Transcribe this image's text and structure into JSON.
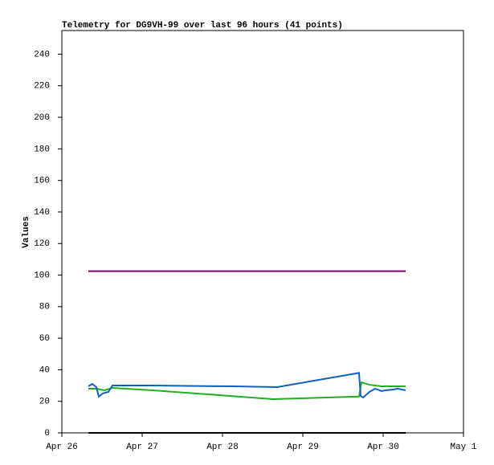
{
  "chart_data": {
    "type": "line",
    "title": "Telemetry for DG9VH-99 over last 96 hours (41 points)",
    "y_label": "Values",
    "xlim": [
      0,
      5
    ],
    "xticks": [
      {
        "value": 0,
        "label": "Apr 26"
      },
      {
        "value": 1,
        "label": "Apr 27"
      },
      {
        "value": 2,
        "label": "Apr 28"
      },
      {
        "value": 3,
        "label": "Apr 29"
      },
      {
        "value": 4,
        "label": "Apr 30"
      },
      {
        "value": 5,
        "label": "May 1"
      }
    ],
    "ylim": [
      0,
      255
    ],
    "yticks": [
      0,
      20,
      40,
      60,
      80,
      100,
      120,
      140,
      160,
      180,
      200,
      220,
      240
    ],
    "grid": false,
    "series": [
      {
        "color": "#800060",
        "x": [
          0.33,
          4.28
        ],
        "values": [
          102.5,
          102.5
        ]
      },
      {
        "color": "#000000",
        "x": [
          0.33,
          4.28
        ],
        "values": [
          0,
          0
        ]
      },
      {
        "color": "#20b020",
        "x": [
          0.33,
          0.43,
          0.53,
          0.63,
          1.13,
          2.63,
          3.7,
          3.73,
          3.83,
          3.98,
          4.28
        ],
        "values": [
          28,
          28,
          27,
          28.5,
          27,
          21.4,
          23,
          32,
          30.5,
          29.5,
          29.5
        ]
      },
      {
        "color": "#1060c0",
        "x": [
          0.33,
          0.38,
          0.43,
          0.46,
          0.51,
          0.58,
          0.63,
          1.13,
          2.13,
          2.68,
          3.7,
          3.72,
          3.75,
          3.83,
          3.9,
          3.98,
          4.03,
          4.13,
          4.18,
          4.23,
          4.28
        ],
        "values": [
          29.6,
          31,
          29,
          23,
          25,
          26,
          30,
          30,
          29.5,
          29,
          38,
          23.4,
          22.4,
          26,
          28,
          26.5,
          27,
          27.5,
          28,
          27.5,
          27
        ]
      }
    ]
  }
}
